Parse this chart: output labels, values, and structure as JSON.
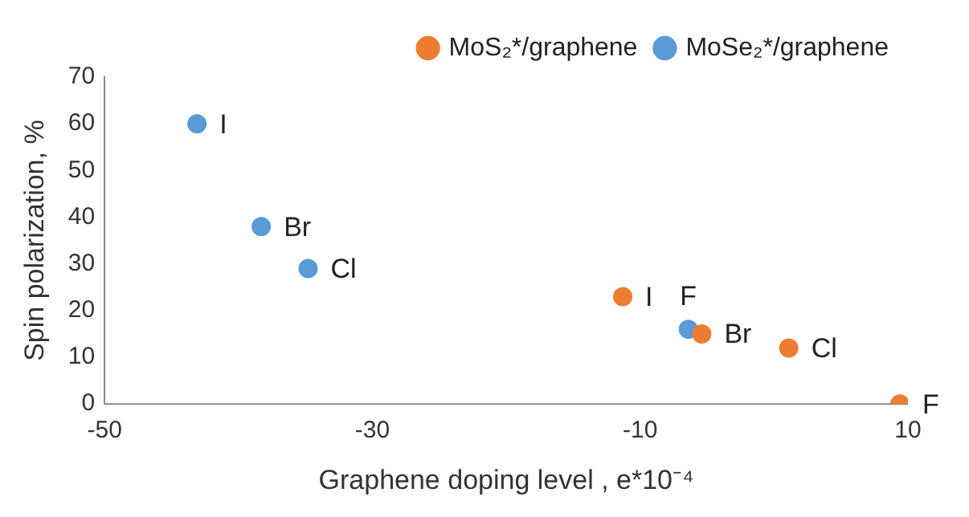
{
  "chart_data": {
    "type": "scatter",
    "xlabel": "Graphene doping level , e*10⁻⁴",
    "ylabel": "Spin polarization, %",
    "series": [
      {
        "name": "MoS₂*/graphene",
        "color": "#ed7d31",
        "x": [
          -11.3,
          -5.4,
          1.1,
          9.4
        ],
        "values": [
          23,
          15,
          12,
          0
        ]
      },
      {
        "name": "MoSe₂*/graphene",
        "color": "#5b9bd5",
        "x": [
          -43.1,
          -38.3,
          -34.8,
          -6.4
        ],
        "values": [
          60,
          38,
          29,
          16
        ]
      }
    ],
    "annotations": [
      {
        "text": "I",
        "x": -11.3,
        "y": 23
      },
      {
        "text": "Br",
        "x": -5.4,
        "y": 15
      },
      {
        "text": "Cl",
        "x": 1.1,
        "y": 12
      },
      {
        "text": "F",
        "x": 9.4,
        "y": 0
      },
      {
        "text": "I",
        "x": -43.1,
        "y": 60
      },
      {
        "text": "Br",
        "x": -38.3,
        "y": 38
      },
      {
        "text": "Cl",
        "x": -34.8,
        "y": 29
      },
      {
        "text": "F",
        "x": -6.4,
        "y": 16
      }
    ],
    "xlim": [
      -50,
      10
    ],
    "xticks": [
      -50,
      -30,
      -10,
      10
    ],
    "ylim": [
      0,
      70
    ],
    "yticks": [
      0,
      10,
      20,
      30,
      40,
      50,
      60,
      70
    ],
    "grid": false,
    "legend": "top right",
    "marker": "circle"
  }
}
